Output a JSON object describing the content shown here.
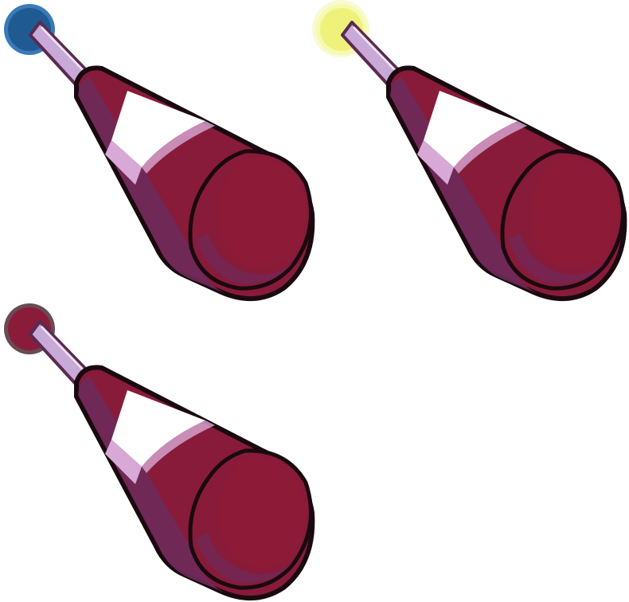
{
  "sprites": [
    {
      "name": "wand-blue-tip",
      "tip_icon": "blue-orb-icon",
      "tip_color": "#1F5A93",
      "tip_rim": "#3A7AB8",
      "tip_glow": false
    },
    {
      "name": "wand-yellow-tip",
      "tip_icon": "yellow-orb-icon",
      "tip_color": "#EEF27A",
      "tip_rim": "#F6F9B0",
      "tip_glow": true
    },
    {
      "name": "wand-red-tip",
      "tip_icon": "red-orb-icon",
      "tip_color": "#8A1C3A",
      "tip_rim": "#6A4A55",
      "tip_glow": false
    }
  ],
  "palette": {
    "body": "#881B39",
    "body_shadow": "#6E2A5A",
    "outline": "#1A0A10",
    "band": "#FFFFFF",
    "band_shade": "#D8A9D6",
    "stick": "#C9A9D8",
    "stick_outline": "#5A2A50"
  }
}
